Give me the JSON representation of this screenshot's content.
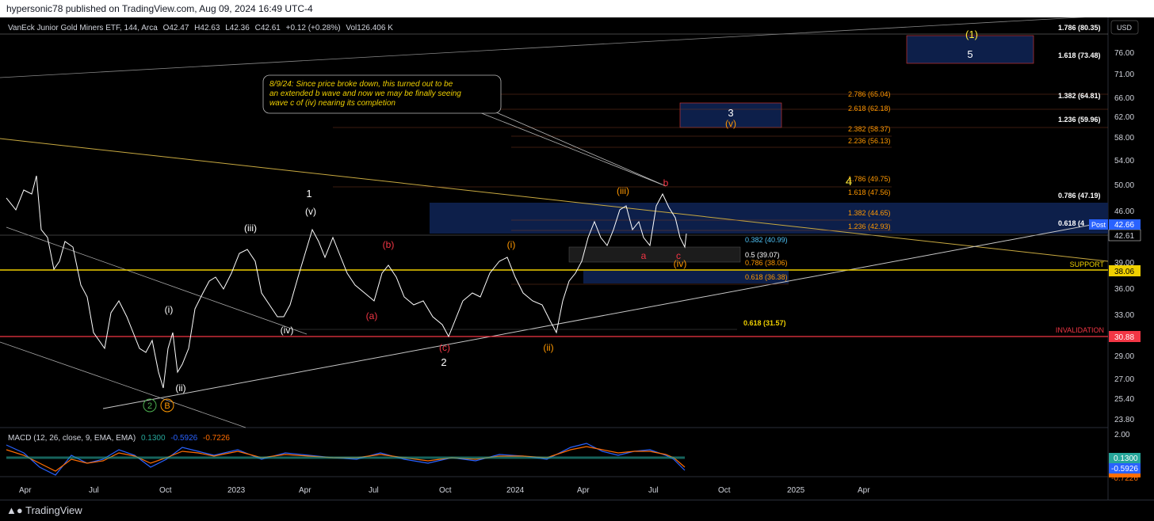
{
  "header": {
    "published": "hypersonic78 published on TradingView.com, Aug 09, 2024 16:49 UTC-4"
  },
  "legend": {
    "symbol": "VanEck Junior Gold Miners ETF, 144, Arca",
    "o_label": "O",
    "o": "42.47",
    "h_label": "H",
    "h": "42.63",
    "l_label": "L",
    "l": "42.36",
    "c_label": "C",
    "c": "42.61",
    "change": "+0.12 (+0.28%)",
    "vol_label": "Vol",
    "vol": "126.406 K"
  },
  "currency": "USD",
  "price_scale": [
    "76.00",
    "71.00",
    "66.00",
    "62.00",
    "58.00",
    "54.00",
    "50.00",
    "46.00",
    "42.61",
    "39.00",
    "36.00",
    "33.00",
    "29.00",
    "27.00",
    "25.40",
    "23.80"
  ],
  "time_axis": [
    "Apr",
    "Jul",
    "Oct",
    "2023",
    "Apr",
    "Jul",
    "Oct",
    "2024",
    "Apr",
    "Jul",
    "Oct",
    "2025",
    "Apr"
  ],
  "fib_right": [
    "1.786 (80.35)",
    "1.618 (73.48)",
    "1.382 (64.81)",
    "1.236 (59.96)",
    "0.786 (47.19)",
    "0.618 (4"
  ],
  "fib_orange_top": [
    "2.786 (65.04)",
    "2.618 (62.18)",
    "2.382 (58.37)",
    "2.236 (56.13)"
  ],
  "fib_orange_mid": [
    "1.786 (49.75)",
    "1.618 (47.56)",
    "1.382 (44.65)",
    "1.236 (42.93)"
  ],
  "fib_blue": "0.382 (40.99)",
  "fib_white": "0.5 (39.07)",
  "fib_orange_low": [
    "0.786 (38.06)",
    "0.618 (36.38)"
  ],
  "fib_yellow": "0.618 (31.57)",
  "price_tags": {
    "post_label": "Post",
    "post_value": "42.66",
    "last": "42.61",
    "support_label": "SUPPORT",
    "support": "38.06",
    "invalidation_label": "INVALIDATION",
    "invalidation": "30.88"
  },
  "note": [
    "8/9/24: Since price broke down, this turned out to be",
    "an extended b wave and now we may be finally seeing",
    "wave c of (iv) nearing its completion"
  ],
  "wave_labels": {
    "w1": "(1)",
    "w5": "5",
    "w3": "3",
    "wv_orange": "(v)",
    "w4": "4",
    "one": "1",
    "v": "(v)",
    "iii": "(iii)",
    "i": "(i)",
    "ii": "(ii)",
    "iv": "(iv)",
    "two": "2",
    "circ2": "2",
    "circB": "B",
    "b_red": "(b)",
    "a_red": "(a)",
    "c_red": "(c)",
    "i_or": "(i)",
    "ii_or": "(ii)",
    "iii_or": "(iii)",
    "iv_or": "(iv)",
    "b_small": "b",
    "a_small": "a",
    "c_small": "c"
  },
  "macd": {
    "title": "MACD (12, 26, close, 9, EMA, EMA)",
    "v1": "0.1300",
    "v2": "-0.5926",
    "v3": "-0.7226",
    "scale_top": "2.00",
    "tag1": "0.1300",
    "tag2": "-0.5926",
    "tag3": "-0.7226"
  },
  "footer": {
    "brand": "TradingView"
  },
  "colors": {
    "white_wave": "#ffffff",
    "red_wave": "#f23645",
    "orange_wave": "#ff9800",
    "yellow_wave": "#ffeb3b",
    "green_wave": "#4caf50",
    "zone_blue": "#0d1f4a",
    "macd_blue": "#2962ff",
    "macd_orange": "#ff6d00",
    "teal": "#26a69a"
  }
}
